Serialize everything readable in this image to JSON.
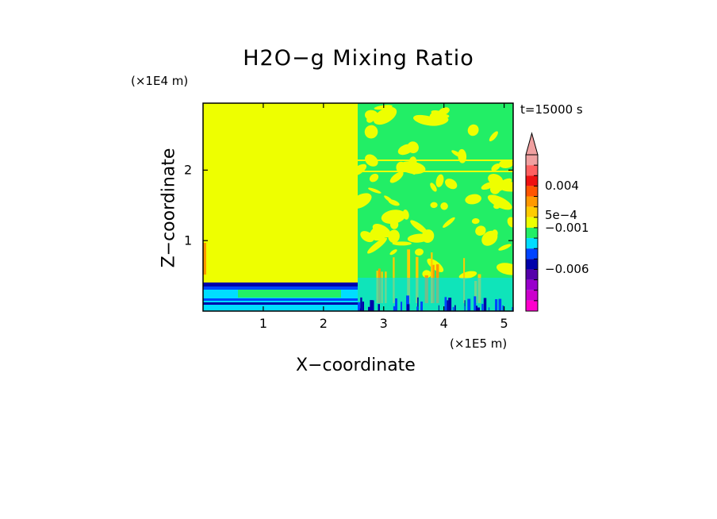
{
  "chart_data": {
    "type": "heatmap",
    "title": "H2O−g Mixing Ratio",
    "xlabel": "X−coordinate",
    "ylabel": "Z−coordinate",
    "x_unit": "(×1E5 m)",
    "y_unit": "(×1E4 m)",
    "time_label": "t=15000 s",
    "xlim": [
      0,
      5.15
    ],
    "ylim": [
      0,
      2.95
    ],
    "x_ticks": [
      1,
      2,
      3,
      4,
      5
    ],
    "y_ticks": [
      1,
      2
    ],
    "colorbar": {
      "levels_top_to_bottom": [
        "#f0a0a0",
        "#ff6060",
        "#ee1111",
        "#ff5500",
        "#ff9900",
        "#ffcc00",
        "#eeff00",
        "#22ee66",
        "#00ddff",
        "#0044ff",
        "#0000aa",
        "#5500aa",
        "#9900cc",
        "#cc00cc",
        "#ff00cc"
      ],
      "labels": [
        {
          "text": "0.004",
          "value": 0.004
        },
        {
          "text": "5e−4",
          "value": 0.0005
        },
        {
          "text": "−0.001",
          "value": -0.001
        },
        {
          "text": "−0.006",
          "value": -0.006
        }
      ],
      "extend": "max"
    }
  }
}
